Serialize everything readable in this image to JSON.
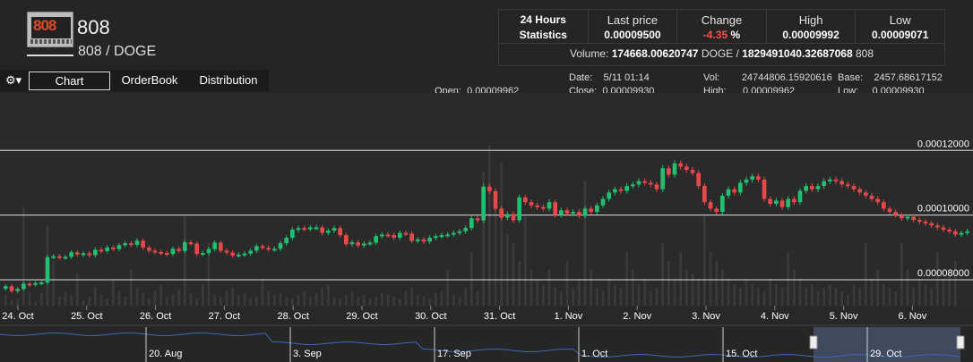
{
  "coin": {
    "symbol": "808",
    "pair": "808 / DOGE",
    "logo_text": "808"
  },
  "stats": {
    "header_line1": "24 Hours",
    "header_line2": "Statistics",
    "last_price_label": "Last price",
    "last_price": "0.00009500",
    "change_label": "Change",
    "change_value": "-4.35",
    "change_unit": " %",
    "high_label": "High",
    "high": "0.00009992",
    "low_label": "Low",
    "low": "0.00009071",
    "volume_label": "Volume: ",
    "volume_base": "174668.00620747",
    "volume_base_unit": " DOGE / ",
    "volume_quote": "1829491040.32687068",
    "volume_quote_unit": " 808"
  },
  "toolbar": {
    "gear_icon": "⚙▾",
    "tabs": [
      "Chart",
      "OrderBook",
      "Distribution"
    ],
    "active_tab": "Chart"
  },
  "ohlc": {
    "open_label": "Open:",
    "open": "0.00009962",
    "date_label": "Date:",
    "date": "5/11 01:14",
    "close_label": "Close:",
    "close": "0.00009930",
    "vol_label": "Vol:",
    "vol": "24744806.15920616",
    "high_label": "High:",
    "high": "0.00009962",
    "base_label": "Base:",
    "base": "2457.68617152",
    "low_label": "Low:",
    "low": "0.00009930"
  },
  "colors": {
    "up": "#20c070",
    "down": "#e84848",
    "volume": "#3a3a3a",
    "grid": "#ffffff",
    "navigator_line": "#3a6ab8"
  },
  "chart_data": {
    "type": "candlestick",
    "y_ticks": [
      "0.00012000",
      "0.00010000",
      "0.00008000"
    ],
    "y_tick_values": [
      0.00012,
      0.0001,
      8e-05
    ],
    "ylim": [
      7.2e-05,
      0.000135
    ],
    "x_ticks": [
      "24. Oct",
      "25. Oct",
      "26. Oct",
      "27. Oct",
      "28. Oct",
      "29. Oct",
      "30. Oct",
      "31. Oct",
      "1. Nov",
      "2. Nov",
      "3. Nov",
      "4. Nov",
      "5. Nov",
      "6. Nov"
    ],
    "closes": [
      7.8e-05,
      7.65e-05,
      7.72e-05,
      7.88e-05,
      7.85e-05,
      7.9e-05,
      7.92e-05,
      8.7e-05,
      8.73e-05,
      8.69e-05,
      8.71e-05,
      8.85e-05,
      8.78e-05,
      8.82e-05,
      8.76e-05,
      8.93e-05,
      8.89e-05,
      9e-05,
      8.95e-05,
      9.07e-05,
      9.13e-05,
      9.08e-05,
      9.21e-05,
      9e-05,
      8.9e-05,
      8.86e-05,
      8.83e-05,
      8.8e-05,
      8.96e-05,
      8.89e-05,
      9.16e-05,
      9.12e-05,
      8.8e-05,
      8.83e-05,
      8.95e-05,
      9.15e-05,
      8.9e-05,
      8.84e-05,
      8.75e-05,
      8.78e-05,
      8.81e-05,
      8.9e-05,
      9.04e-05,
      8.99e-05,
      8.94e-05,
      8.96e-05,
      9.13e-05,
      9.3e-05,
      9.55e-05,
      9.6e-05,
      9.58e-05,
      9.62e-05,
      9.62e-05,
      9.45e-05,
      9.52e-05,
      9.6e-05,
      9.38e-05,
      9.1e-05,
      9.16e-05,
      9.06e-05,
      9.12e-05,
      9.15e-05,
      9.35e-05,
      9.4e-05,
      9.38e-05,
      9.3e-05,
      9.45e-05,
      9.43e-05,
      9.2e-05,
      9.25e-05,
      9.18e-05,
      9.3e-05,
      9.35e-05,
      9.38e-05,
      9.4e-05,
      9.45e-05,
      9.5e-05,
      9.6e-05,
      9.9e-05,
      9.84e-05,
      0.0001088,
      0.0001074,
      0.000102,
      9.92e-05,
      0.0001003,
      9.84e-05,
      0.0001055,
      0.000104,
      0.000103,
      0.0001025,
      0.000102,
      0.000104,
      0.0001,
      0.0001015,
      0.0001005,
      0.000101,
      9.98e-05,
      0.000102,
      0.000101,
      0.000103,
      0.000105,
      0.000107,
      0.000108,
      0.0001075,
      0.000109,
      0.0001095,
      0.0001105,
      0.00011,
      0.0001095,
      0.000108,
      0.0001145,
      0.0001125,
      0.000116,
      0.000115,
      0.000114,
      0.000113,
      0.000109,
      0.000104,
      0.000102,
      0.000101,
      0.000106,
      0.000108,
      0.000107,
      0.00011,
      0.000111,
      0.000112,
      0.000111,
      0.000105,
      0.0001035,
      0.0001045,
      0.0001025,
      0.000105,
      0.000104,
      0.0001075,
      0.000109,
      0.000108,
      0.000109,
      0.0001105,
      0.000111,
      0.0001105,
      0.0001095,
      0.000109,
      0.000108,
      0.000107,
      0.000106,
      0.000105,
      0.000104,
      0.000102,
      0.000101,
      0.0001,
      9.9e-05,
      9.95e-05,
      9.85e-05,
      9.8e-05,
      9.75e-05,
      9.68e-05,
      9.62e-05,
      9.55e-05,
      9.5e-05,
      9.4e-05,
      9.45e-05,
      9.5e-05
    ],
    "volumes": [
      0.06,
      0.03,
      0.04,
      0.55,
      0.08,
      0.02,
      0.07,
      0.45,
      0.25,
      0.05,
      0.08,
      0.06,
      0.18,
      0.03,
      0.05,
      0.1,
      0.06,
      0.04,
      0.14,
      0.08,
      0.05,
      0.2,
      0.1,
      0.07,
      0.04,
      0.08,
      0.12,
      0.05,
      0.06,
      0.09,
      0.5,
      0.07,
      0.04,
      0.12,
      0.35,
      0.06,
      0.05,
      0.08,
      0.1,
      0.06,
      0.07,
      0.04,
      0.05,
      0.15,
      0.08,
      0.06,
      0.07,
      0.05,
      0.04,
      0.06,
      0.08,
      0.05,
      0.07,
      0.1,
      0.12,
      0.05,
      0.04,
      0.06,
      0.08,
      0.05,
      0.06,
      0.04,
      0.05,
      0.07,
      0.06,
      0.05,
      0.04,
      0.08,
      0.1,
      0.06,
      0.05,
      0.04,
      0.07,
      0.08,
      0.2,
      0.06,
      0.05,
      0.1,
      0.3,
      0.08,
      0.75,
      0.9,
      0.6,
      0.8,
      0.4,
      0.35,
      0.25,
      0.5,
      0.2,
      0.15,
      0.12,
      0.2,
      0.1,
      0.08,
      0.25,
      0.1,
      0.15,
      0.7,
      0.2,
      0.1,
      0.08,
      0.15,
      0.12,
      0.1,
      0.3,
      0.2,
      0.12,
      0.15,
      0.08,
      0.1,
      0.35,
      0.25,
      0.15,
      0.3,
      0.2,
      0.18,
      0.15,
      0.5,
      0.3,
      0.25,
      0.2,
      0.15,
      0.12,
      0.1,
      0.15,
      0.12,
      0.1,
      0.08,
      0.15,
      0.12,
      0.1,
      0.3,
      0.2,
      0.15,
      0.1,
      0.12,
      0.08,
      0.1,
      0.12,
      0.1,
      0.08,
      0.06,
      0.12,
      0.1,
      0.35,
      0.15,
      0.2,
      0.12,
      0.1,
      0.08,
      0.35,
      0.2,
      0.1,
      0.15,
      0.12,
      0.1,
      0.3,
      0.15,
      0.2,
      0.25
    ]
  },
  "navigator": {
    "labels": [
      "20. Aug",
      "3. Sep",
      "17. Sep",
      "1. Oct",
      "15. Oct",
      "29. Oct"
    ]
  }
}
